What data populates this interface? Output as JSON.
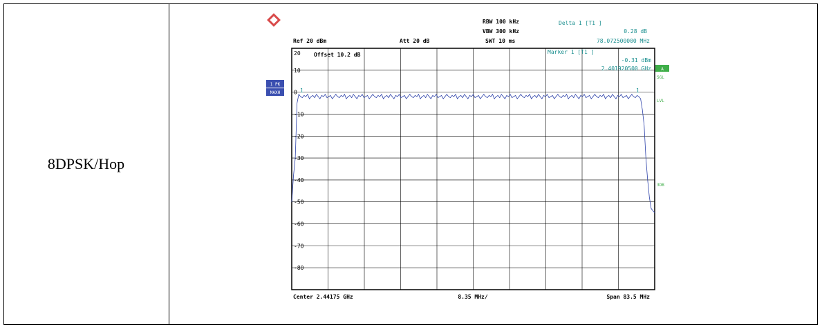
{
  "table": {
    "mode_label": "8DPSK/Hop"
  },
  "colors": {
    "trace": "#2a3fa8",
    "info": "#1a8f8f",
    "green": "#3fae49",
    "blue_box": "#3b4fb0"
  },
  "analyzer": {
    "logo_text": "R&S",
    "ref": "Ref  20 dBm",
    "att": "Att  20 dB",
    "rbw": "RBW 100 kHz",
    "vbw": "VBW 300 kHz",
    "swt": "SWT 10 ms",
    "delta_title": "Delta 1 [T1 ]",
    "delta_level": "0.28 dB",
    "delta_freq": "78.072500000 MHz",
    "marker_title": "Marker 1 [T1 ]",
    "marker_level": "-0.31 dBm",
    "marker_freq": "2.401920500 GHz",
    "offset": "Offset  10.2 dB",
    "center": "Center  2.44175 GHz",
    "per_div": "8.35 MHz/",
    "span": "Span  83.5 MHz",
    "trace_label_1": "1 PK",
    "trace_label_2": "MAXH",
    "side_a": "A",
    "side_sgl": "SGL",
    "side_lvl": "LVL",
    "side_3db": "3DB",
    "marker_num_left": "1",
    "marker_num_right": "1"
  },
  "chart_data": {
    "type": "line",
    "title": "",
    "xlabel": "",
    "ylabel": "",
    "ylim": [
      -90,
      20
    ],
    "y_ticks": [
      20,
      10,
      0,
      -10,
      -20,
      -30,
      -40,
      -50,
      -60,
      -70,
      -80
    ],
    "y_tick_labels": [
      "20",
      "10",
      "0",
      "-10",
      "-20",
      "-30",
      "-40",
      "-50",
      "-60",
      "-70",
      "-80"
    ],
    "x_center_ghz": 2.44175,
    "x_span_mhz": 83.5,
    "grid": true,
    "series": [
      {
        "values": [
          -50,
          -38,
          -30,
          -5,
          -1,
          -2,
          -2.5,
          -1.5,
          -2,
          -1,
          -3,
          -2,
          -1.5,
          -2.5,
          -1,
          -2,
          -3,
          -1.5,
          -2,
          -1,
          -2.5,
          -2,
          -1.5,
          -3,
          -2,
          -1,
          -2,
          -2.5,
          -1.5,
          -2,
          -1,
          -3,
          -2,
          -1.5,
          -2.5,
          -1,
          -2,
          -3,
          -1.5,
          -2,
          -1,
          -2.5,
          -2,
          -1.5,
          -3,
          -2,
          -1,
          -2,
          -2.5,
          -1.5,
          -2,
          -1,
          -3,
          -2,
          -1.5,
          -2.5,
          -1,
          -2,
          -3,
          -1.5,
          -2,
          -1,
          -2.5,
          -2,
          -1.5,
          -3,
          -2,
          -1,
          -2,
          -2.5,
          -1.5,
          -2,
          -1,
          -3,
          -2,
          -1.5,
          -2.5,
          -1,
          -2,
          -3,
          -1.5,
          -2,
          -1,
          -2.5,
          -2,
          -1.5,
          -3,
          -2,
          -1,
          -2,
          -2.5,
          -1.5,
          -2,
          -1,
          -3,
          -2,
          -1.5,
          -2.5,
          -1,
          -2,
          -3,
          -1.5,
          -2,
          -1,
          -2.5,
          -2,
          -1.5,
          -3,
          -2,
          -1,
          -2,
          -2.5,
          -1.5,
          -2,
          -1,
          -3,
          -2,
          -1.5,
          -2.5,
          -1,
          -2,
          -3,
          -1.5,
          -2,
          -1,
          -2.5,
          -2,
          -1.5,
          -3,
          -2,
          -1,
          -2,
          -2.5,
          -1.5,
          -2,
          -1,
          -3,
          -2,
          -1.5,
          -2.5,
          -1,
          -2,
          -3,
          -1.5,
          -2,
          -1,
          -2.5,
          -2,
          -1.5,
          -3,
          -2,
          -1,
          -2,
          -2.5,
          -1.5,
          -2,
          -1,
          -3,
          -2,
          -1.5,
          -2.5,
          -1,
          -2,
          -3,
          -1.5,
          -2,
          -1,
          -2.5,
          -2,
          -1.5,
          -3,
          -2,
          -1,
          -2,
          -2.5,
          -1.5,
          -2,
          -1,
          -3,
          -2,
          -1.5,
          -2.5,
          -1,
          -2,
          -3,
          -1.5,
          -2,
          -1,
          -2.5,
          -2,
          -1.5,
          -3,
          -2,
          -1,
          -2,
          -2.5,
          -1.5,
          -2,
          -3,
          -8,
          -15,
          -30,
          -40,
          -48,
          -53,
          -54,
          -55
        ]
      }
    ]
  }
}
